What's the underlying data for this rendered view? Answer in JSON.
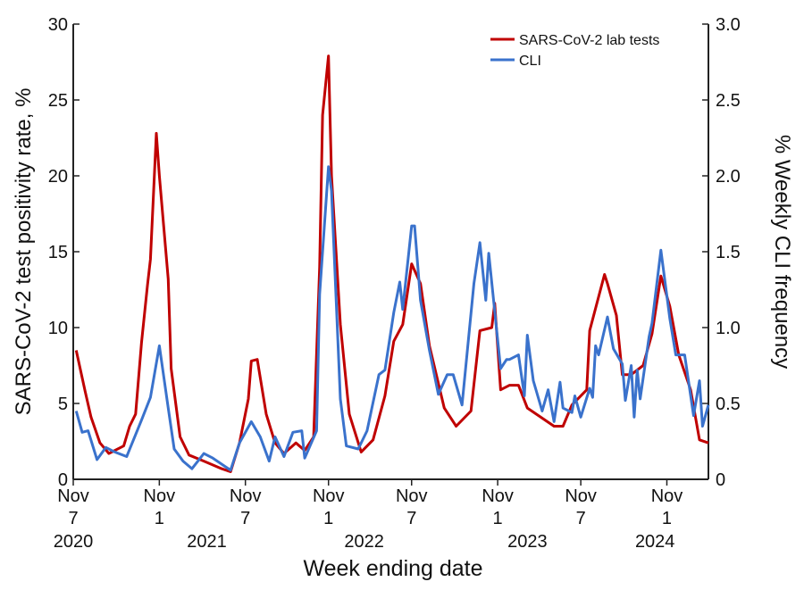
{
  "chart_data": {
    "type": "line",
    "title": "",
    "xlabel": "Week ending date",
    "ylabel": "SARS-CoV-2 test positivity rate, %",
    "y2label": "% Weekly CLI frequency",
    "ylim": [
      0,
      30
    ],
    "y2lim": [
      0,
      3.0
    ],
    "yticks": [
      "0",
      "5",
      "10",
      "15",
      "20",
      "25",
      "30"
    ],
    "y2ticks": [
      "0",
      "0.5",
      "1.0",
      "1.5",
      "2.0",
      "2.5",
      "3.0"
    ],
    "xlim": [
      "2020-11-07",
      "2024-12-14"
    ],
    "xticks": [
      {
        "month": "Nov",
        "day": "7",
        "date": "2020-11-07"
      },
      {
        "month": "Nov",
        "day": "1",
        "date": "2021-05-29"
      },
      {
        "month": "Nov",
        "day": "7",
        "date": "2021-12-18"
      },
      {
        "month": "Nov",
        "day": "1",
        "date": "2022-07-02"
      },
      {
        "month": "Nov",
        "day": "7",
        "date": "2023-01-14"
      },
      {
        "month": "Nov",
        "day": "1",
        "date": "2023-08-05"
      },
      {
        "month": "Nov",
        "day": "7",
        "date": "2024-02-17"
      },
      {
        "month": "Nov",
        "day": "1",
        "date": "2024-09-07"
      }
    ],
    "xyears": [
      {
        "label": "2020",
        "date": "2020-11-07"
      },
      {
        "label": "2021",
        "date": "2021-09-18"
      },
      {
        "label": "2022",
        "date": "2022-09-24"
      },
      {
        "label": "2023",
        "date": "2023-10-14"
      },
      {
        "label": "2024",
        "date": "2024-08-10"
      }
    ],
    "grid": false,
    "legend_position": "top-right",
    "series": [
      {
        "name": "SARS-CoV-2 lab tests",
        "axis": "left",
        "color": "#C00000",
        "points": [
          [
            "2020-11-14",
            8.5
          ],
          [
            "2020-12-05",
            5.8
          ],
          [
            "2020-12-19",
            4.1
          ],
          [
            "2021-01-09",
            2.4
          ],
          [
            "2021-01-30",
            1.7
          ],
          [
            "2021-03-06",
            2.2
          ],
          [
            "2021-03-20",
            3.5
          ],
          [
            "2021-04-03",
            4.3
          ],
          [
            "2021-04-17",
            9.0
          ],
          [
            "2021-05-01",
            12.8
          ],
          [
            "2021-05-08",
            14.5
          ],
          [
            "2021-05-22",
            22.8
          ],
          [
            "2021-05-29",
            20.0
          ],
          [
            "2021-06-19",
            13.2
          ],
          [
            "2021-06-26",
            7.3
          ],
          [
            "2021-07-17",
            2.8
          ],
          [
            "2021-08-07",
            1.6
          ],
          [
            "2021-09-11",
            1.2
          ],
          [
            "2021-10-23",
            0.7
          ],
          [
            "2021-11-13",
            0.5
          ],
          [
            "2021-12-04",
            2.4
          ],
          [
            "2021-12-25",
            5.3
          ],
          [
            "2022-01-01",
            7.8
          ],
          [
            "2022-01-15",
            7.9
          ],
          [
            "2022-02-05",
            4.3
          ],
          [
            "2022-02-26",
            2.4
          ],
          [
            "2022-03-19",
            1.7
          ],
          [
            "2022-04-16",
            2.4
          ],
          [
            "2022-05-07",
            1.9
          ],
          [
            "2022-05-28",
            2.8
          ],
          [
            "2022-06-11",
            14.0
          ],
          [
            "2022-06-18",
            24.0
          ],
          [
            "2022-07-02",
            27.9
          ],
          [
            "2022-07-09",
            20.0
          ],
          [
            "2022-07-30",
            10.2
          ],
          [
            "2022-08-20",
            4.3
          ],
          [
            "2022-09-17",
            1.8
          ],
          [
            "2022-10-15",
            2.6
          ],
          [
            "2022-11-12",
            5.5
          ],
          [
            "2022-12-03",
            9.1
          ],
          [
            "2022-12-24",
            10.2
          ],
          [
            "2023-01-14",
            14.2
          ],
          [
            "2023-02-04",
            12.9
          ],
          [
            "2023-02-25",
            8.8
          ],
          [
            "2023-04-01",
            4.7
          ],
          [
            "2023-04-29",
            3.5
          ],
          [
            "2023-06-03",
            4.5
          ],
          [
            "2023-06-24",
            9.8
          ],
          [
            "2023-07-22",
            10.0
          ],
          [
            "2023-07-29",
            11.6
          ],
          [
            "2023-08-12",
            5.9
          ],
          [
            "2023-09-02",
            6.2
          ],
          [
            "2023-09-23",
            6.2
          ],
          [
            "2023-10-14",
            4.7
          ],
          [
            "2023-11-25",
            3.9
          ],
          [
            "2023-12-16",
            3.5
          ],
          [
            "2024-01-06",
            3.5
          ],
          [
            "2024-01-27",
            4.9
          ],
          [
            "2024-03-02",
            5.9
          ],
          [
            "2024-03-09",
            9.8
          ],
          [
            "2024-04-13",
            13.5
          ],
          [
            "2024-04-20",
            12.9
          ],
          [
            "2024-05-11",
            10.8
          ],
          [
            "2024-05-25",
            6.9
          ],
          [
            "2024-06-15",
            6.9
          ],
          [
            "2024-07-13",
            7.5
          ],
          [
            "2024-08-03",
            9.6
          ],
          [
            "2024-08-24",
            13.4
          ],
          [
            "2024-09-14",
            11.4
          ],
          [
            "2024-10-05",
            8.2
          ],
          [
            "2024-11-02",
            5.9
          ],
          [
            "2024-11-23",
            2.6
          ],
          [
            "2024-12-14",
            2.4
          ]
        ]
      },
      {
        "name": "CLI",
        "axis": "right",
        "color": "#3A72CC",
        "points": [
          [
            "2020-11-14",
            0.45
          ],
          [
            "2020-11-28",
            0.31
          ],
          [
            "2020-12-12",
            0.32
          ],
          [
            "2021-01-02",
            0.13
          ],
          [
            "2021-01-23",
            0.21
          ],
          [
            "2021-02-13",
            0.18
          ],
          [
            "2021-03-13",
            0.15
          ],
          [
            "2021-04-17",
            0.39
          ],
          [
            "2021-05-08",
            0.54
          ],
          [
            "2021-05-29",
            0.88
          ],
          [
            "2021-06-19",
            0.47
          ],
          [
            "2021-07-03",
            0.2
          ],
          [
            "2021-07-24",
            0.12
          ],
          [
            "2021-08-14",
            0.07
          ],
          [
            "2021-09-11",
            0.17
          ],
          [
            "2021-10-02",
            0.14
          ],
          [
            "2021-11-13",
            0.06
          ],
          [
            "2021-12-04",
            0.24
          ],
          [
            "2022-01-01",
            0.38
          ],
          [
            "2022-01-22",
            0.28
          ],
          [
            "2022-02-12",
            0.12
          ],
          [
            "2022-02-26",
            0.28
          ],
          [
            "2022-03-19",
            0.15
          ],
          [
            "2022-04-09",
            0.31
          ],
          [
            "2022-04-30",
            0.32
          ],
          [
            "2022-05-07",
            0.14
          ],
          [
            "2022-06-04",
            0.32
          ],
          [
            "2022-06-11",
            1.22
          ],
          [
            "2022-07-02",
            2.06
          ],
          [
            "2022-07-09",
            1.9
          ],
          [
            "2022-07-30",
            0.53
          ],
          [
            "2022-08-13",
            0.22
          ],
          [
            "2022-09-10",
            0.2
          ],
          [
            "2022-10-01",
            0.32
          ],
          [
            "2022-10-29",
            0.69
          ],
          [
            "2022-11-12",
            0.72
          ],
          [
            "2022-12-03",
            1.1
          ],
          [
            "2022-12-17",
            1.3
          ],
          [
            "2022-12-24",
            1.12
          ],
          [
            "2023-01-14",
            1.67
          ],
          [
            "2023-01-21",
            1.67
          ],
          [
            "2023-02-04",
            1.18
          ],
          [
            "2023-02-25",
            0.85
          ],
          [
            "2023-03-18",
            0.56
          ],
          [
            "2023-04-08",
            0.69
          ],
          [
            "2023-04-22",
            0.69
          ],
          [
            "2023-05-13",
            0.49
          ],
          [
            "2023-06-10",
            1.29
          ],
          [
            "2023-06-24",
            1.56
          ],
          [
            "2023-07-08",
            1.18
          ],
          [
            "2023-07-15",
            1.49
          ],
          [
            "2023-08-12",
            0.73
          ],
          [
            "2023-08-26",
            0.79
          ],
          [
            "2023-09-02",
            0.79
          ],
          [
            "2023-09-23",
            0.82
          ],
          [
            "2023-10-07",
            0.55
          ],
          [
            "2023-10-14",
            0.95
          ],
          [
            "2023-10-28",
            0.65
          ],
          [
            "2023-11-18",
            0.45
          ],
          [
            "2023-12-02",
            0.59
          ],
          [
            "2023-12-16",
            0.38
          ],
          [
            "2023-12-30",
            0.64
          ],
          [
            "2024-01-06",
            0.47
          ],
          [
            "2024-01-27",
            0.44
          ],
          [
            "2024-02-03",
            0.55
          ],
          [
            "2024-02-17",
            0.41
          ],
          [
            "2024-03-09",
            0.6
          ],
          [
            "2024-03-16",
            0.54
          ],
          [
            "2024-03-23",
            0.88
          ],
          [
            "2024-03-30",
            0.82
          ],
          [
            "2024-04-20",
            1.07
          ],
          [
            "2024-05-04",
            0.86
          ],
          [
            "2024-05-25",
            0.76
          ],
          [
            "2024-06-01",
            0.52
          ],
          [
            "2024-06-15",
            0.75
          ],
          [
            "2024-06-22",
            0.41
          ],
          [
            "2024-06-29",
            0.72
          ],
          [
            "2024-07-06",
            0.53
          ],
          [
            "2024-07-27",
            0.94
          ],
          [
            "2024-08-03",
            1.03
          ],
          [
            "2024-08-24",
            1.51
          ],
          [
            "2024-09-14",
            1.06
          ],
          [
            "2024-09-28",
            0.82
          ],
          [
            "2024-10-19",
            0.82
          ],
          [
            "2024-11-09",
            0.42
          ],
          [
            "2024-11-23",
            0.65
          ],
          [
            "2024-11-30",
            0.35
          ],
          [
            "2024-12-14",
            0.49
          ]
        ]
      }
    ]
  }
}
